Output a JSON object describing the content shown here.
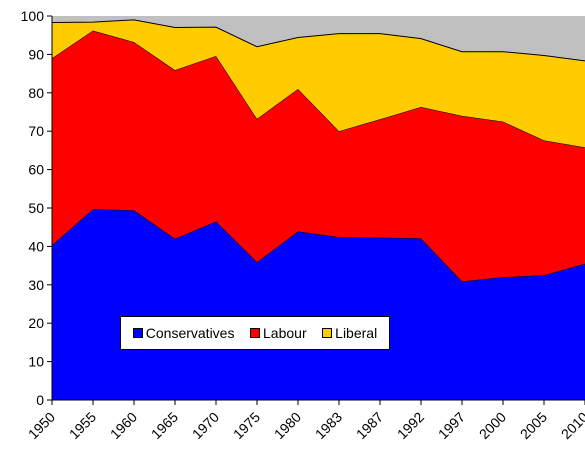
{
  "chart_data": {
    "type": "area",
    "stacked": true,
    "x": [
      "1950",
      "1955",
      "1960",
      "1965",
      "1970",
      "1975",
      "1980",
      "1983",
      "1987",
      "1992",
      "1997",
      "2000",
      "2005",
      "2010"
    ],
    "ylim": [
      0,
      100
    ],
    "yticks": [
      0,
      10,
      20,
      30,
      40,
      50,
      60,
      70,
      80,
      90,
      100
    ],
    "grid": false,
    "legend_position": "bottom-center",
    "series": [
      {
        "name": "Conservatives",
        "color": "#0000FF",
        "values": [
          40.3,
          49.7,
          49.4,
          42.0,
          46.5,
          35.9,
          43.9,
          42.4,
          42.3,
          42.1,
          30.9,
          32.0,
          32.5,
          35.5
        ]
      },
      {
        "name": "Labour",
        "color": "#FF0000",
        "values": [
          48.7,
          46.5,
          43.8,
          43.9,
          43.1,
          37.3,
          37.1,
          27.6,
          30.8,
          34.2,
          43.1,
          40.5,
          35.1,
          30.3
        ]
      },
      {
        "name": "Liberal",
        "color": "#FFCC00",
        "values": [
          9.3,
          2.2,
          5.8,
          11.1,
          7.5,
          18.8,
          13.4,
          25.4,
          22.3,
          17.8,
          16.7,
          18.2,
          22.1,
          22.5
        ]
      }
    ],
    "remainder_color": "#C0C0C0"
  }
}
